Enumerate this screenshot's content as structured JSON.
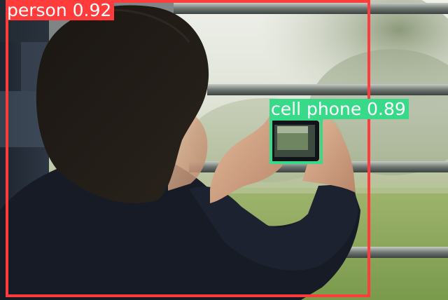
{
  "image": {
    "subject": "person photographing through window bars with a cell phone"
  },
  "detections": [
    {
      "class": "person",
      "confidence": "0.92",
      "label": "person 0.92",
      "color": "#ff3b3b"
    },
    {
      "class": "cell phone",
      "confidence": "0.89",
      "label": "cell phone 0.89",
      "color": "#39d98a"
    }
  ],
  "colors": {
    "person_box": "#ff3b3b",
    "phone_box": "#39d98a"
  }
}
